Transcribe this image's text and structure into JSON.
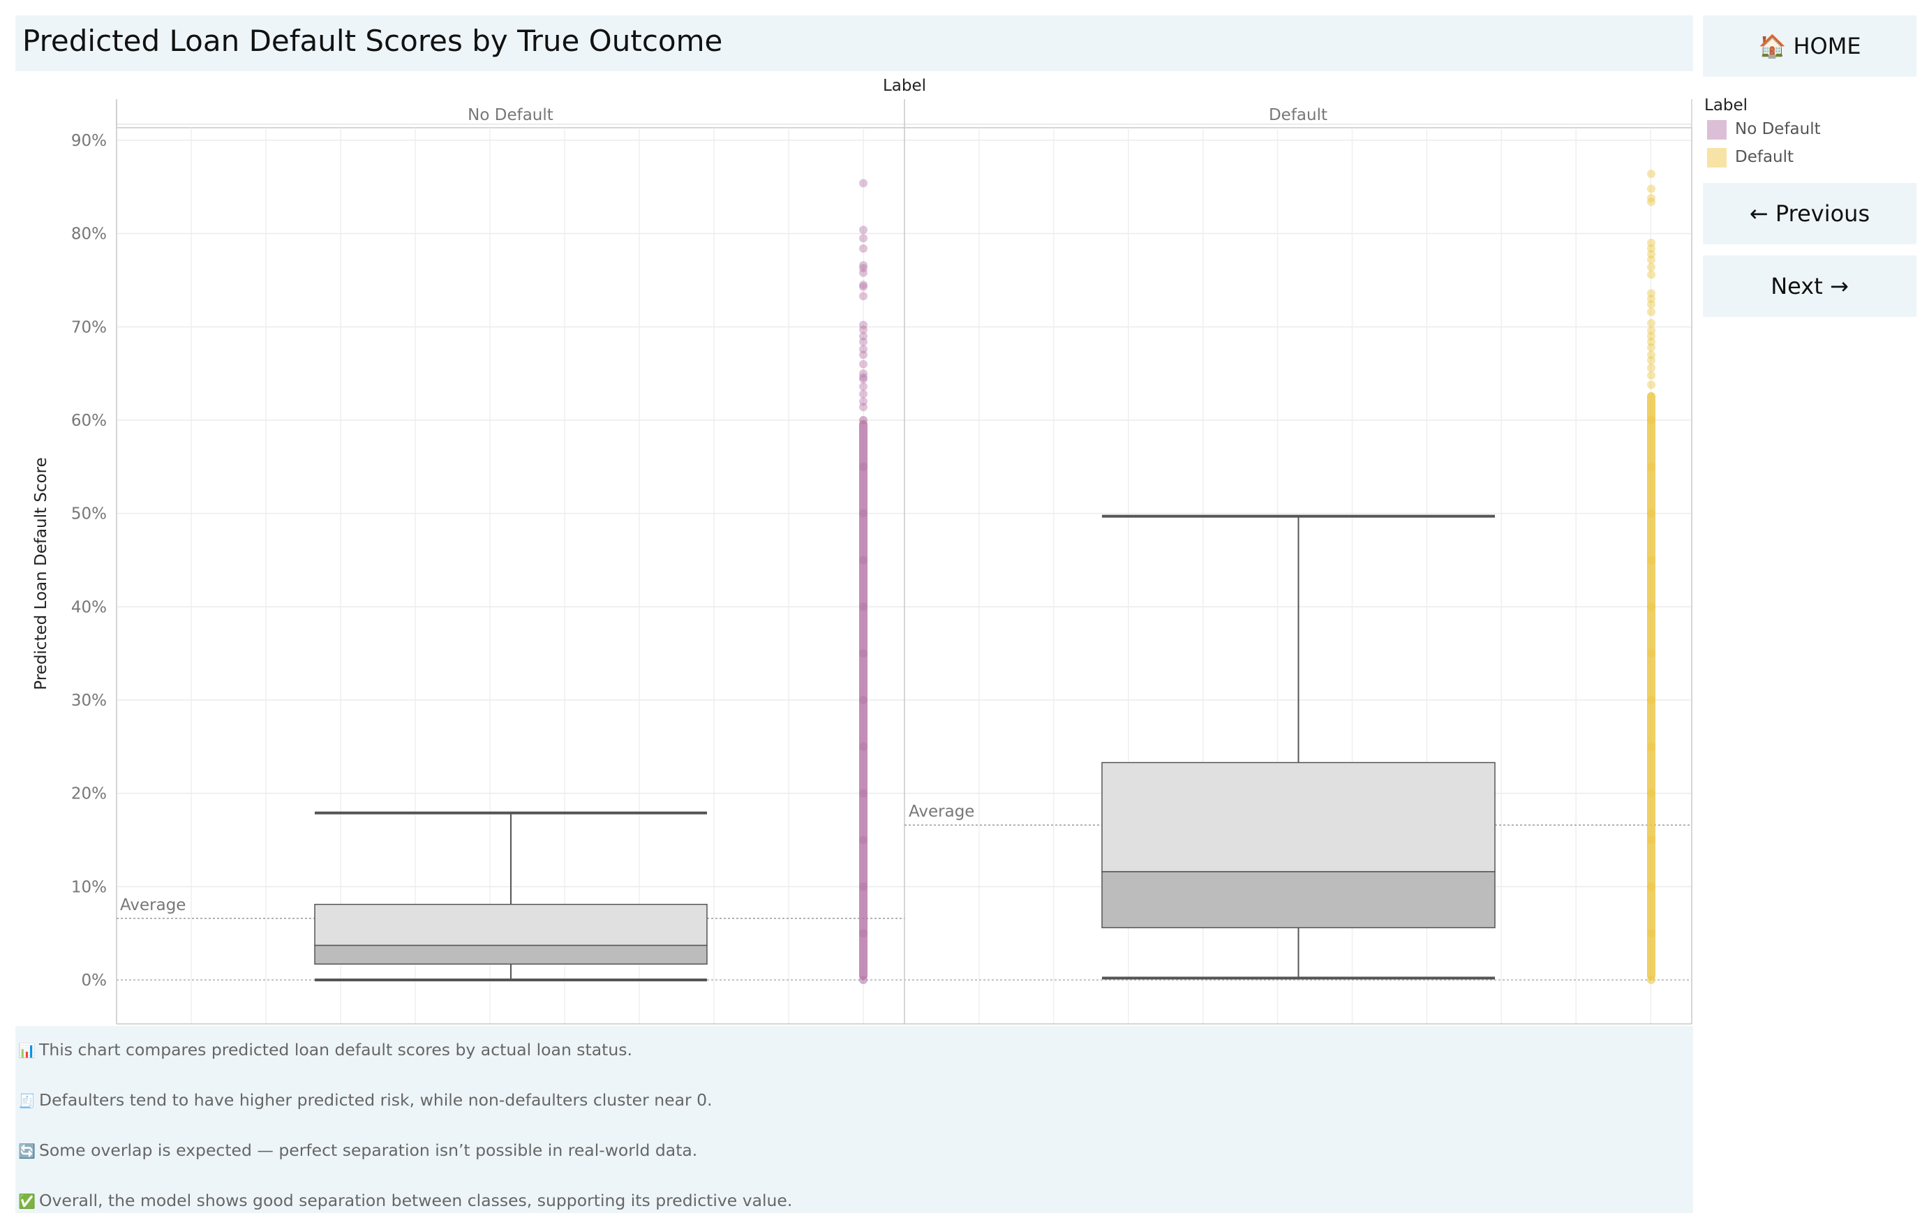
{
  "page": {
    "title": "Predicted Loan Default Scores by True Outcome"
  },
  "nav": {
    "home_label": "🏠 HOME",
    "prev_label": "← Previous",
    "next_label": "Next →"
  },
  "legend": {
    "title": "Label",
    "items": [
      {
        "label": "No Default",
        "color": "#dcbfd6"
      },
      {
        "label": "Default",
        "color": "#f7e3a6"
      }
    ]
  },
  "notes": [
    {
      "icon": "📊",
      "icon_name": "bar-chart-icon",
      "text": "This chart compares predicted loan default scores by actual loan status."
    },
    {
      "icon": "🧾",
      "icon_name": "receipt-icon",
      "text": "Defaulters tend to have higher predicted risk, while non-defaulters cluster near 0."
    },
    {
      "icon": "🔄",
      "icon_name": "refresh-icon",
      "text": "Some overlap is expected — perfect separation isn’t possible in real-world data."
    },
    {
      "icon": "✅",
      "icon_name": "check-icon",
      "text": "Overall, the model shows good separation between classes, supporting its predictive value."
    }
  ],
  "chart_data": {
    "type": "box",
    "title": "Predicted Loan Default Scores by True Outcome",
    "facet_label": "Label",
    "ylabel": "Predicted Loan Default Score",
    "ylim": [
      -0.046,
      0.92
    ],
    "y_ticks": [
      0,
      0.1,
      0.2,
      0.3,
      0.4,
      0.5,
      0.6,
      0.7,
      0.8,
      0.9
    ],
    "y_tick_labels": [
      "0%",
      "10%",
      "20%",
      "30%",
      "40%",
      "50%",
      "60%",
      "70%",
      "80%",
      "90%"
    ],
    "grid": true,
    "legend_placement": "right",
    "reference_line_label": "Average",
    "panels": [
      {
        "name": "No Default",
        "color": "#b87aaa",
        "box": {
          "min": 0.0,
          "q1": 0.017,
          "median": 0.037,
          "q3": 0.081,
          "max": 0.179
        },
        "average": 0.066,
        "points_dense_range": [
          0.0,
          0.6
        ],
        "points_sparse": [
          0.614,
          0.62,
          0.628,
          0.636,
          0.644,
          0.646,
          0.65,
          0.66,
          0.67,
          0.676,
          0.684,
          0.69,
          0.697,
          0.702,
          0.733,
          0.743,
          0.745,
          0.758,
          0.763,
          0.766,
          0.784,
          0.795,
          0.804,
          0.854
        ]
      },
      {
        "name": "Default",
        "color": "#ecc84a",
        "box": {
          "min": 0.002,
          "q1": 0.056,
          "median": 0.116,
          "q3": 0.233,
          "max": 0.497
        },
        "average": 0.166,
        "points_dense_range": [
          0.0,
          0.63
        ],
        "points_sparse": [
          0.638,
          0.648,
          0.656,
          0.664,
          0.67,
          0.678,
          0.684,
          0.69,
          0.696,
          0.704,
          0.716,
          0.724,
          0.73,
          0.736,
          0.756,
          0.764,
          0.772,
          0.778,
          0.784,
          0.79,
          0.834,
          0.838,
          0.848,
          0.864
        ]
      }
    ]
  }
}
